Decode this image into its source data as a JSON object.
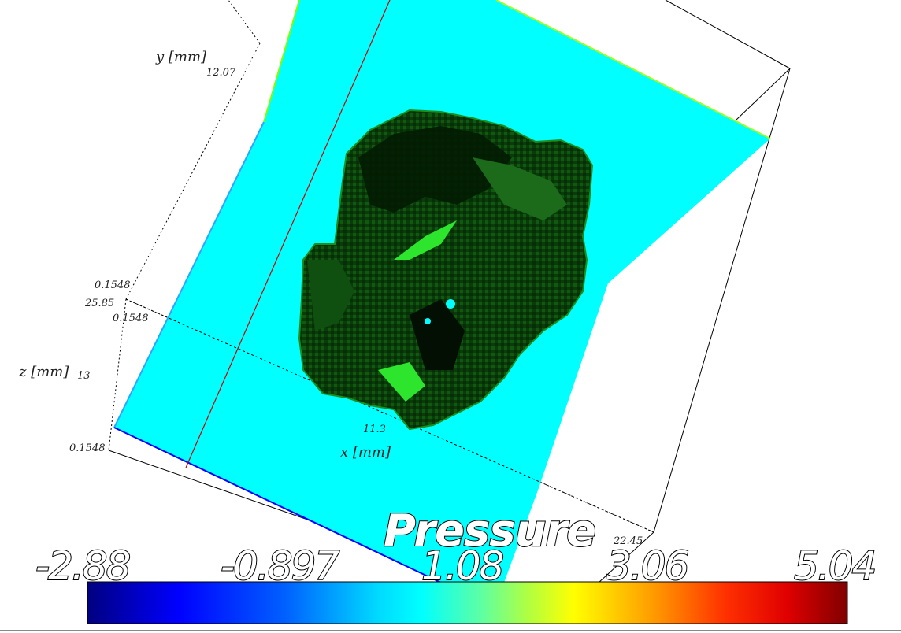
{
  "axes": {
    "x_label": "x [mm]",
    "y_label": "y [mm]",
    "z_label": "z [mm]",
    "x_ticks": [
      "11.3",
      "22.45"
    ],
    "y_ticks": [
      "12.07",
      "0.1548",
      "0.1548"
    ],
    "z_ticks": [
      "25.85",
      "13",
      "0.1548"
    ]
  },
  "colorbar": {
    "title": "Pressure",
    "ticks": [
      "-2.88",
      "-0.897",
      "1.08",
      "3.06",
      "5.04"
    ]
  },
  "colors": {
    "plane": "#00ffff",
    "plane_edge_blue": "#0000ff",
    "plane_edge_green": "#7fff00",
    "object_dark": "#003300",
    "object_mid": "#0a5a0a",
    "object_bright": "#2ee52e",
    "guide_line": "#cc0000",
    "cmap": [
      "#000080",
      "#0000ff",
      "#00a0ff",
      "#00ffff",
      "#7fff7f",
      "#ffff00",
      "#ff8000",
      "#ff0000",
      "#800000"
    ]
  }
}
